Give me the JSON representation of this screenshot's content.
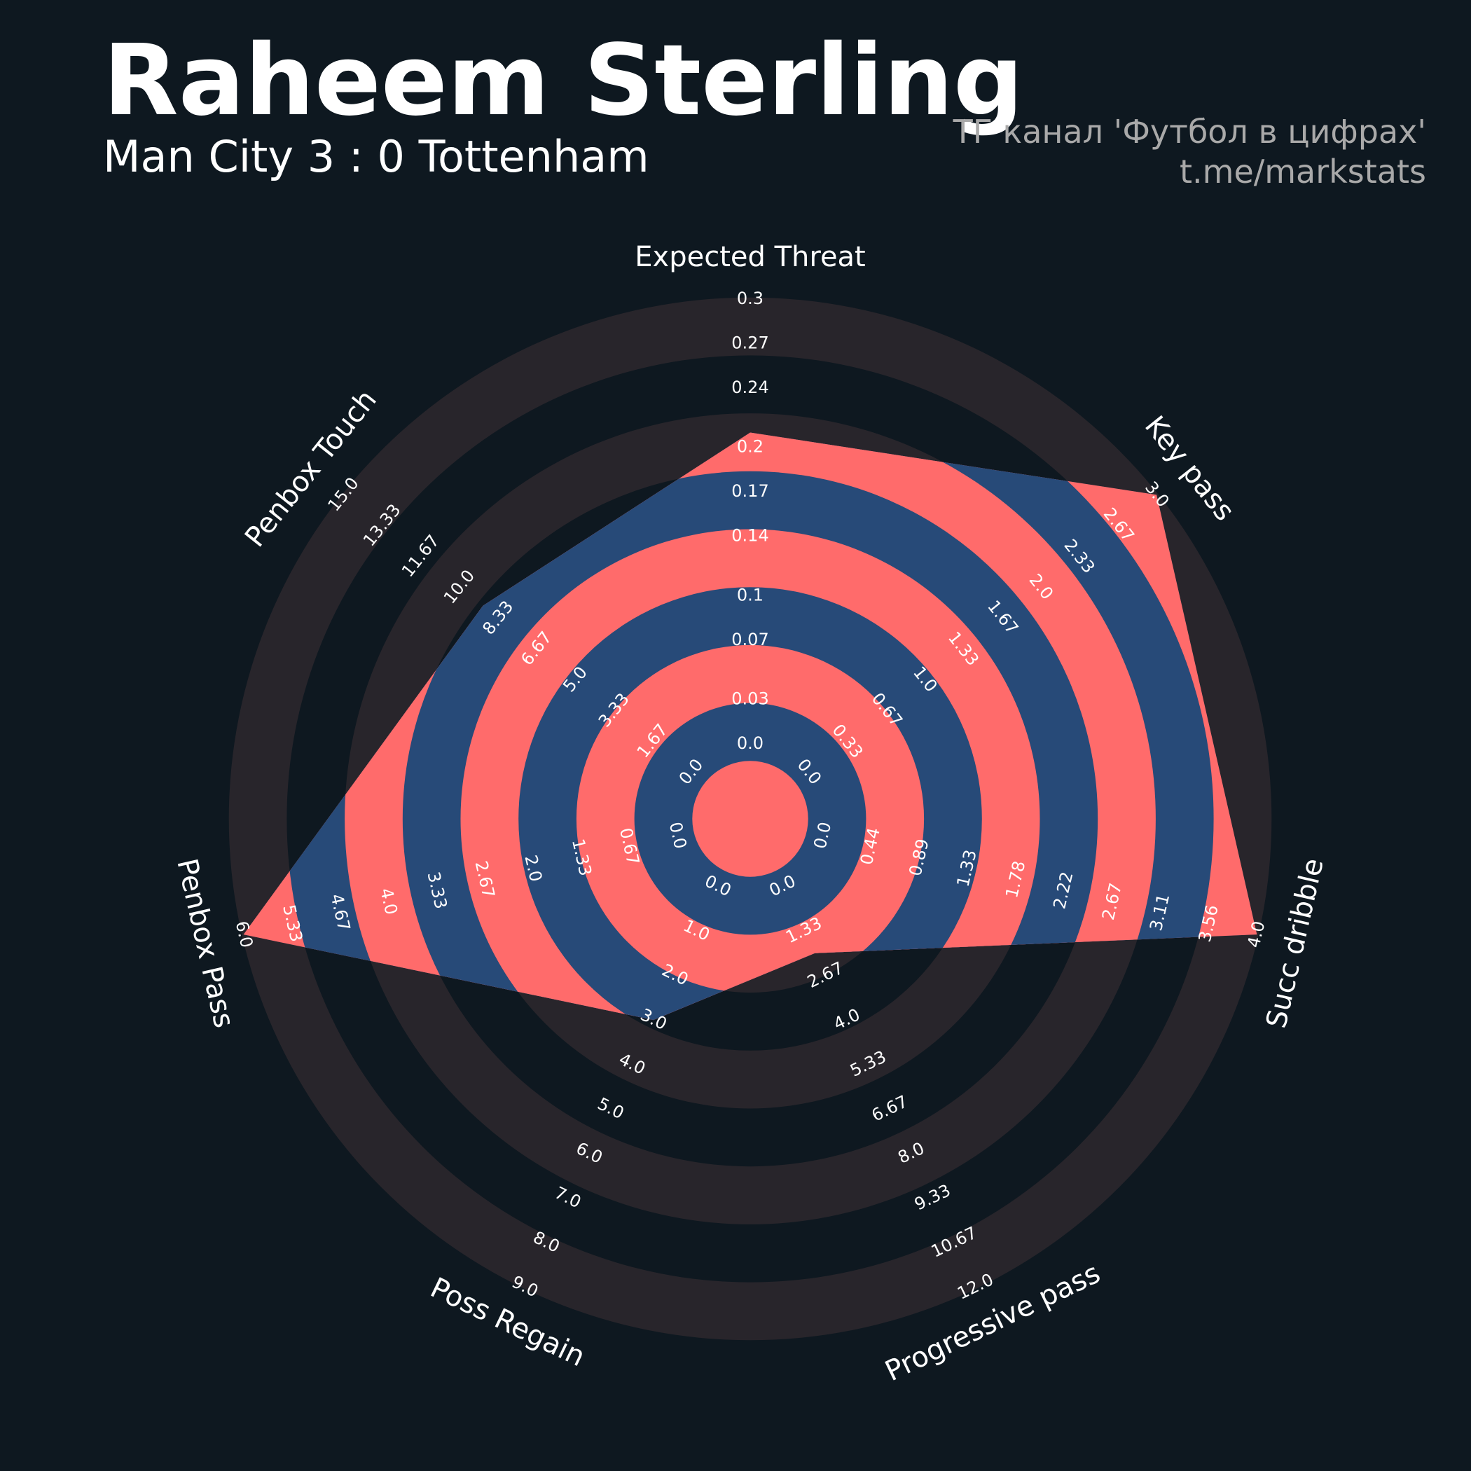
{
  "chart_data": {
    "type": "radar",
    "title": "Raheem Sterling",
    "subtitle": "Man City 3 : 0 Tottenham",
    "credits": [
      "ТГ канал 'Футбол в цифрах'",
      "t.me/markstats"
    ],
    "color": "#ff6b6b",
    "ring_color": "#274a78",
    "background_ring_color": "#28252b",
    "params": [
      {
        "name": "Expected Threat",
        "lim": [
          0,
          0.3
        ],
        "ticks": [
          {
            "value": 0,
            "label": "0.0"
          },
          0.03,
          0.07,
          0.1,
          0.14,
          0.17,
          0.2,
          0.24,
          0.27,
          0.3
        ]
      },
      {
        "name": "Key pass",
        "lim": [
          0,
          3
        ],
        "ticks": [
          {
            "value": 0,
            "label": "0.0"
          },
          0.33,
          0.67,
          {
            "value": 1,
            "label": "1.0"
          },
          1.33,
          1.67,
          {
            "value": 2,
            "label": "2.0"
          },
          2.33,
          2.67,
          {
            "value": 3,
            "label": "3.0"
          }
        ]
      },
      {
        "name": "Succ dribble",
        "lim": [
          0,
          4
        ],
        "ticks": [
          {
            "value": 0,
            "label": "0.0"
          },
          0.44,
          0.89,
          1.33,
          1.78,
          2.22,
          2.67,
          3.11,
          3.56,
          {
            "value": 4,
            "label": "4.0"
          }
        ]
      },
      {
        "name": "Progressive pass",
        "lim": [
          0,
          12
        ],
        "ticks": [
          {
            "value": 0,
            "label": "0.0"
          },
          1.33,
          2.67,
          {
            "value": 4,
            "label": "4.0"
          },
          5.33,
          6.67,
          {
            "value": 8,
            "label": "8.0"
          },
          9.33,
          10.67,
          {
            "value": 12,
            "label": "12.0"
          }
        ]
      },
      {
        "name": "Poss Regain",
        "lim": [
          0,
          9
        ],
        "ticks": [
          {
            "value": 0,
            "label": "0.0"
          },
          {
            "value": 1,
            "label": "1.0"
          },
          {
            "value": 2,
            "label": "2.0"
          },
          {
            "value": 3,
            "label": "3.0"
          },
          {
            "value": 4,
            "label": "4.0"
          },
          {
            "value": 5,
            "label": "5.0"
          },
          {
            "value": 6,
            "label": "6.0"
          },
          {
            "value": 7,
            "label": "7.0"
          },
          {
            "value": 8,
            "label": "8.0"
          },
          {
            "value": 9,
            "label": "9.0"
          }
        ]
      },
      {
        "name": "Penbox Pass",
        "lim": [
          0,
          6
        ],
        "ticks": [
          {
            "value": 0,
            "label": "0.0"
          },
          0.67,
          1.33,
          {
            "value": 2,
            "label": "2.0"
          },
          2.67,
          3.33,
          {
            "value": 4,
            "label": "4.0"
          },
          4.67,
          5.33,
          {
            "value": 6,
            "label": "6.0"
          }
        ]
      },
      {
        "name": "Penbox Touch",
        "lim": [
          0,
          15
        ],
        "ticks": [
          {
            "value": 0,
            "label": "0.0"
          },
          1.67,
          3.33,
          {
            "value": 5,
            "label": "5.0"
          },
          6.67,
          8.33,
          {
            "value": 10,
            "label": "10.0"
          },
          11.67,
          13.33,
          {
            "value": 15,
            "label": "15.0"
          }
        ]
      }
    ],
    "values": [
      0.21,
      3,
      4,
      2,
      3,
      6,
      9
    ]
  }
}
